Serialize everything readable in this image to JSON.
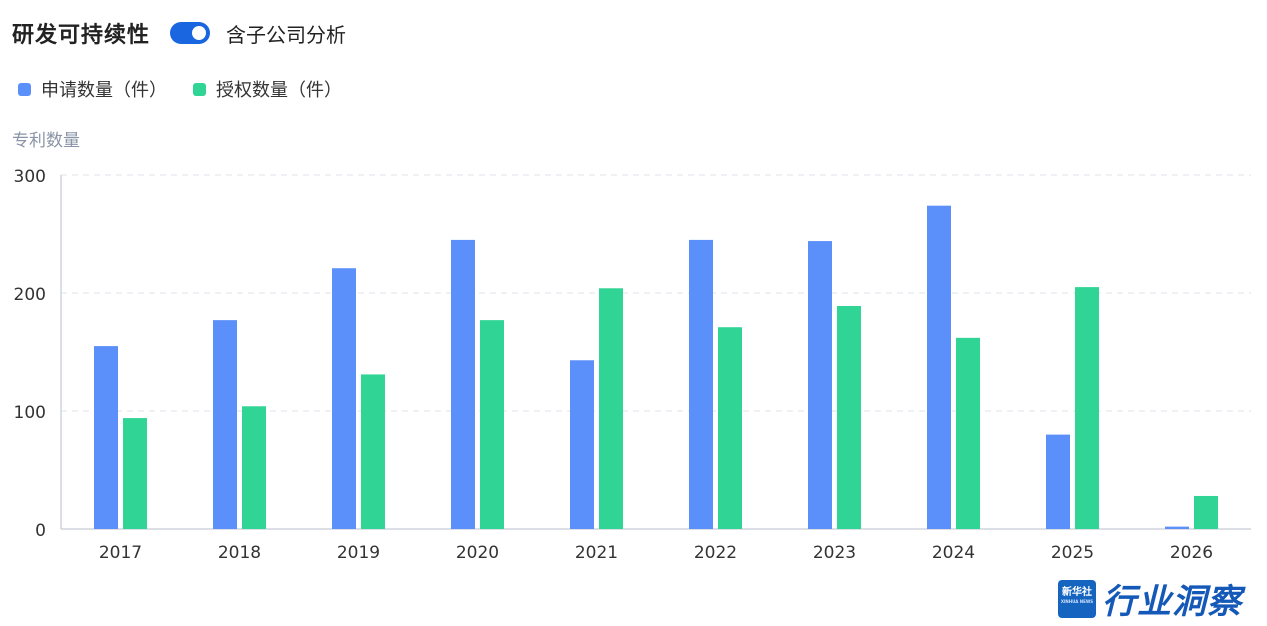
{
  "header": {
    "title": "研发可持续性",
    "toggle_on": true,
    "toggle_label": "含子公司分析"
  },
  "legend": [
    {
      "label": "申请数量（件）",
      "color": "#5b8ff9"
    },
    {
      "label": "授权数量（件）",
      "color": "#30d595"
    }
  ],
  "y_unit_label": "专利数量",
  "chart_data": {
    "type": "bar",
    "categories": [
      "2017",
      "2018",
      "2019",
      "2020",
      "2021",
      "2022",
      "2023",
      "2024",
      "2025",
      "2026"
    ],
    "series": [
      {
        "name": "申请数量（件）",
        "color": "#5b8ff9",
        "values": [
          155,
          177,
          221,
          245,
          143,
          245,
          244,
          274,
          80,
          2
        ]
      },
      {
        "name": "授权数量（件）",
        "color": "#30d595",
        "values": [
          94,
          104,
          131,
          177,
          204,
          171,
          189,
          162,
          205,
          28
        ]
      }
    ],
    "ylim": [
      0,
      300
    ],
    "yticks": [
      "0",
      "100",
      "200",
      "300"
    ],
    "ylabel": "专利数量",
    "grid": true,
    "legend_position": "top-left"
  },
  "logo": {
    "badge_text": "新华社",
    "badge_subtext": "XINHUA NEWS",
    "text": "行业洞察"
  }
}
